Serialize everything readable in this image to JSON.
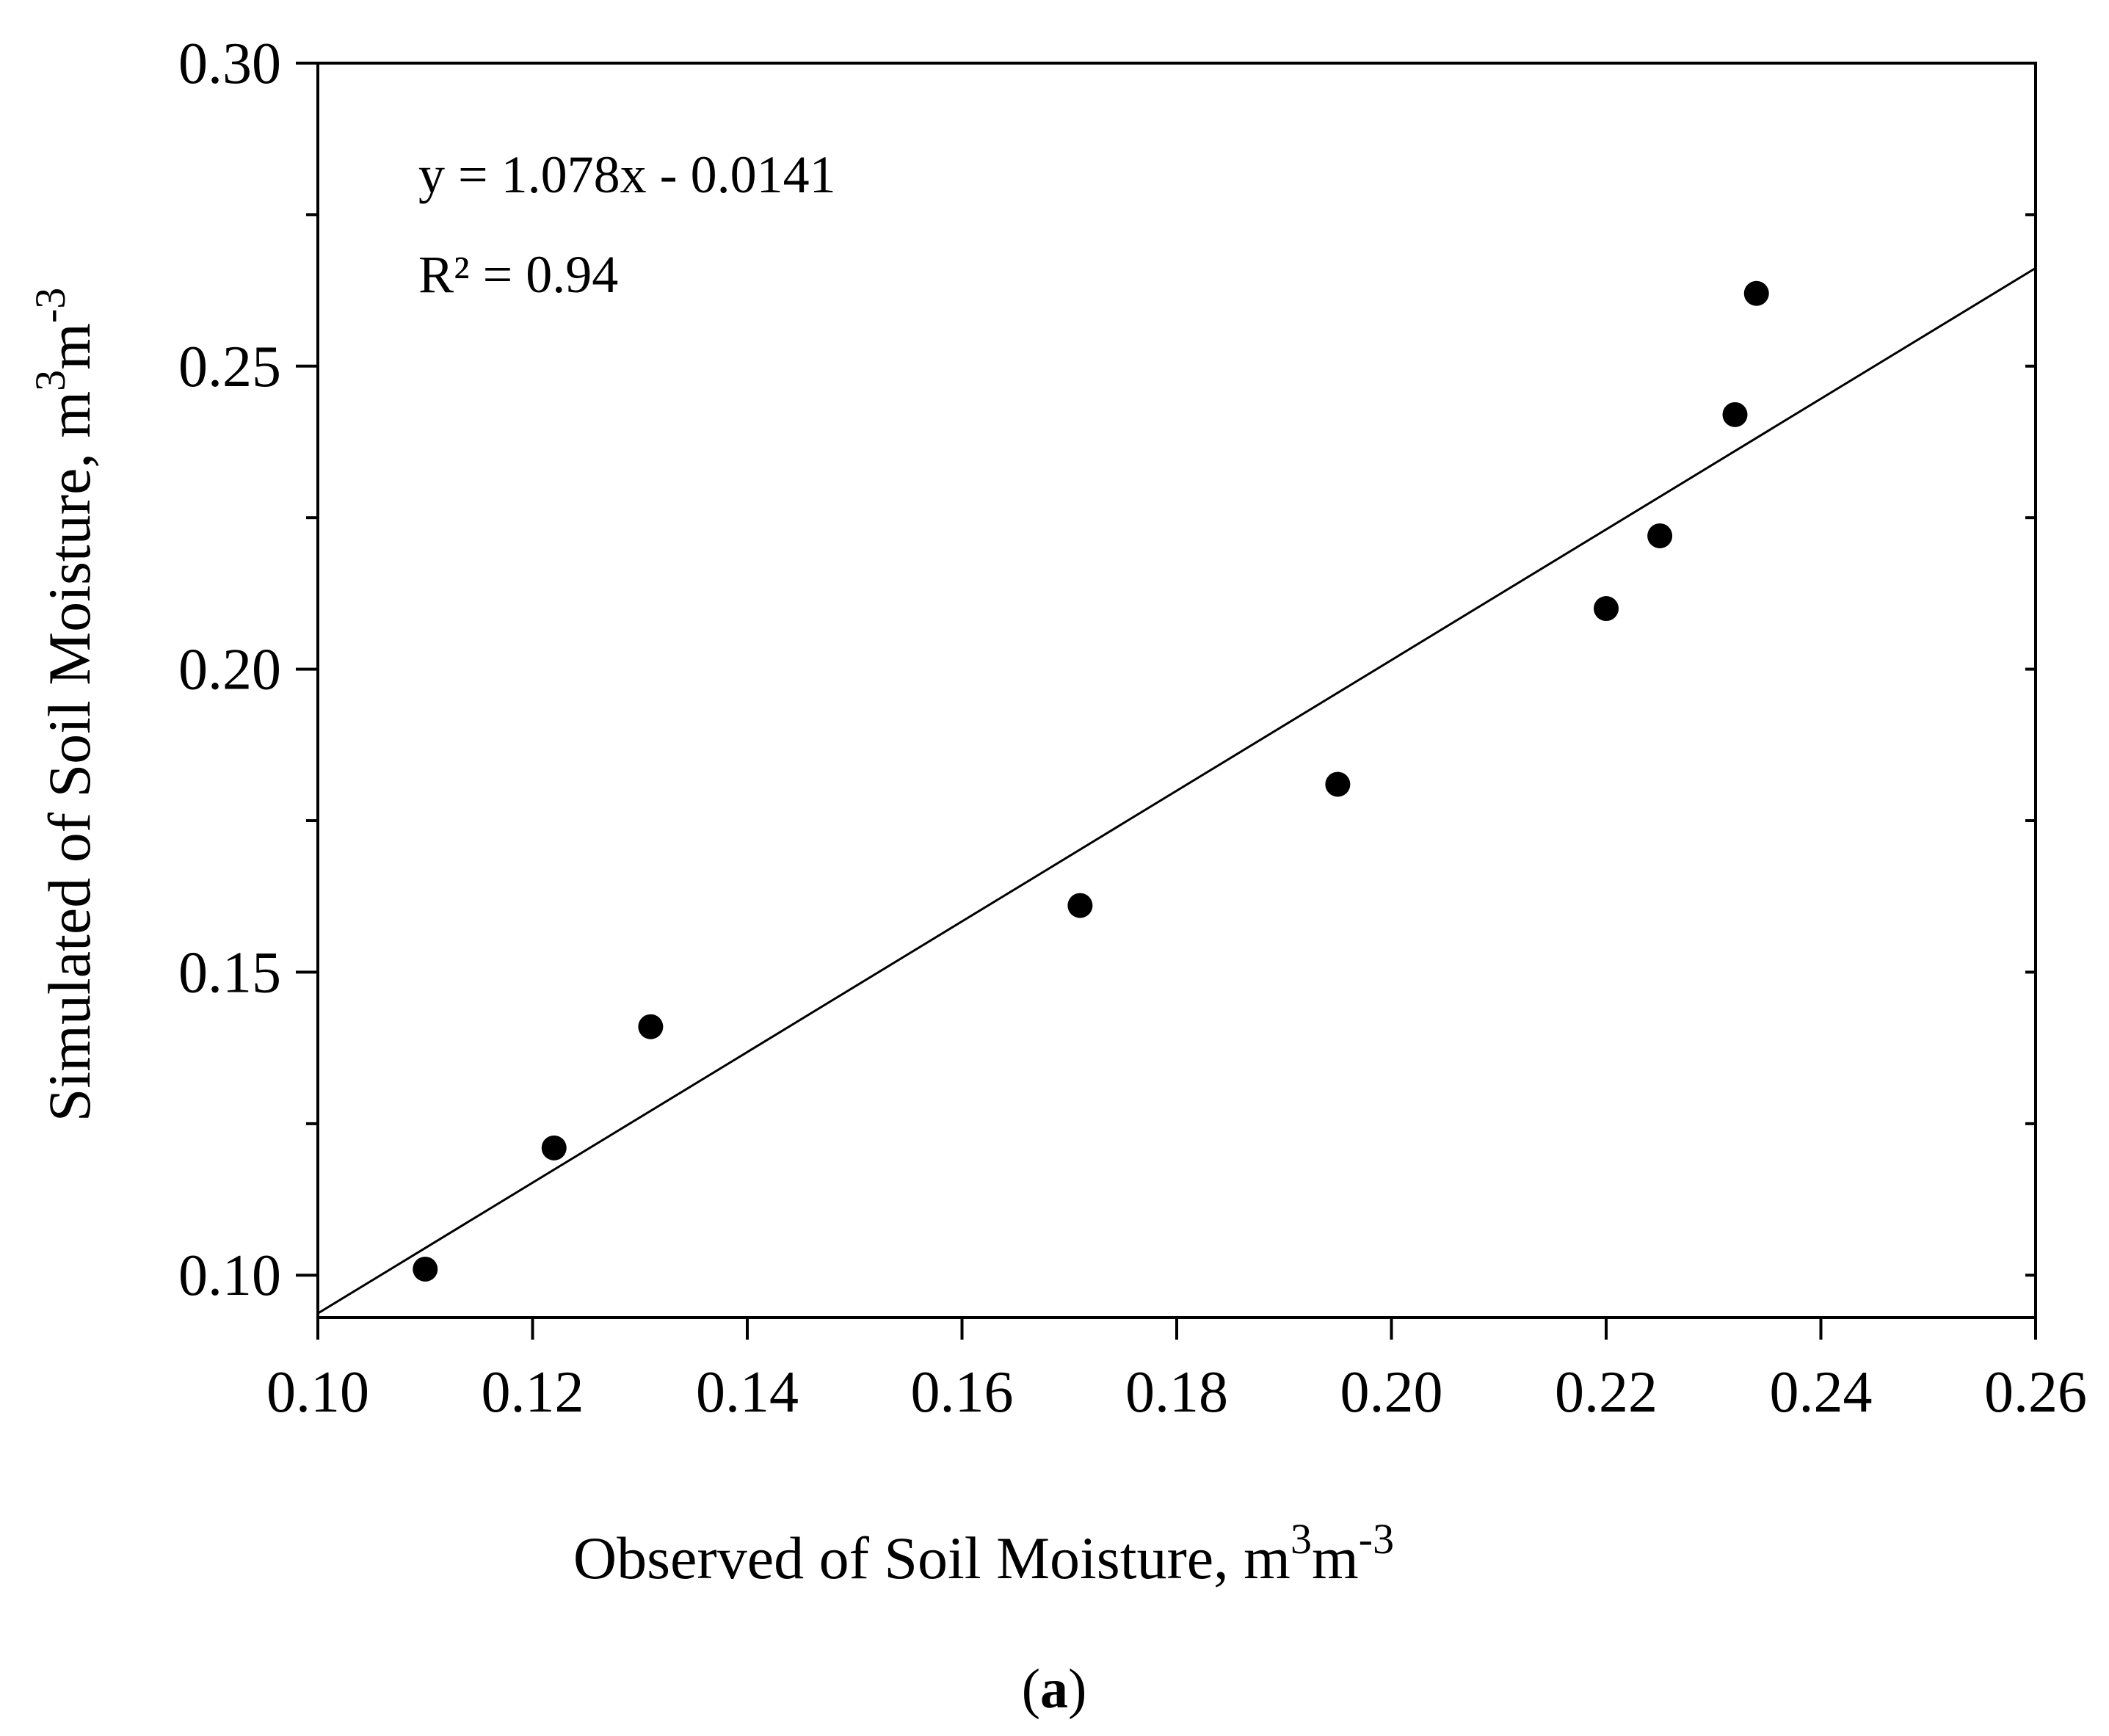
{
  "chart_data": {
    "type": "scatter",
    "title": "",
    "xlabel": {
      "text": "Observed of Soil Moisture, m",
      "sup1": "3",
      "mid": "m",
      "sup2": "-3"
    },
    "ylabel": {
      "text": "Simulated of Soil Moisture, m",
      "sup1": "3",
      "mid": "m",
      "sup2": "-3"
    },
    "xlim": [
      0.1,
      0.26
    ],
    "ylim": [
      0.093,
      0.3
    ],
    "x_ticks": [
      "0.10",
      "0.12",
      "0.14",
      "0.16",
      "0.18",
      "0.20",
      "0.22",
      "0.24",
      "0.26"
    ],
    "y_ticks": [
      "0.10",
      "0.15",
      "0.20",
      "0.25",
      "0.30"
    ],
    "points": [
      {
        "x": 0.11,
        "y": 0.101
      },
      {
        "x": 0.122,
        "y": 0.121
      },
      {
        "x": 0.131,
        "y": 0.141
      },
      {
        "x": 0.171,
        "y": 0.161
      },
      {
        "x": 0.195,
        "y": 0.181
      },
      {
        "x": 0.22,
        "y": 0.21
      },
      {
        "x": 0.225,
        "y": 0.222
      },
      {
        "x": 0.232,
        "y": 0.242
      },
      {
        "x": 0.234,
        "y": 0.262
      }
    ],
    "trendline": {
      "slope": 1.078,
      "intercept": -0.0141
    },
    "equation": "y = 1.078x - 0.0141",
    "r_squared": "R² = 0.94",
    "panel_label": {
      "open": "(",
      "letter": "a",
      "close": ")"
    },
    "grid": false,
    "legend": "none",
    "marker_color": "#000000",
    "line_color": "#000000"
  }
}
